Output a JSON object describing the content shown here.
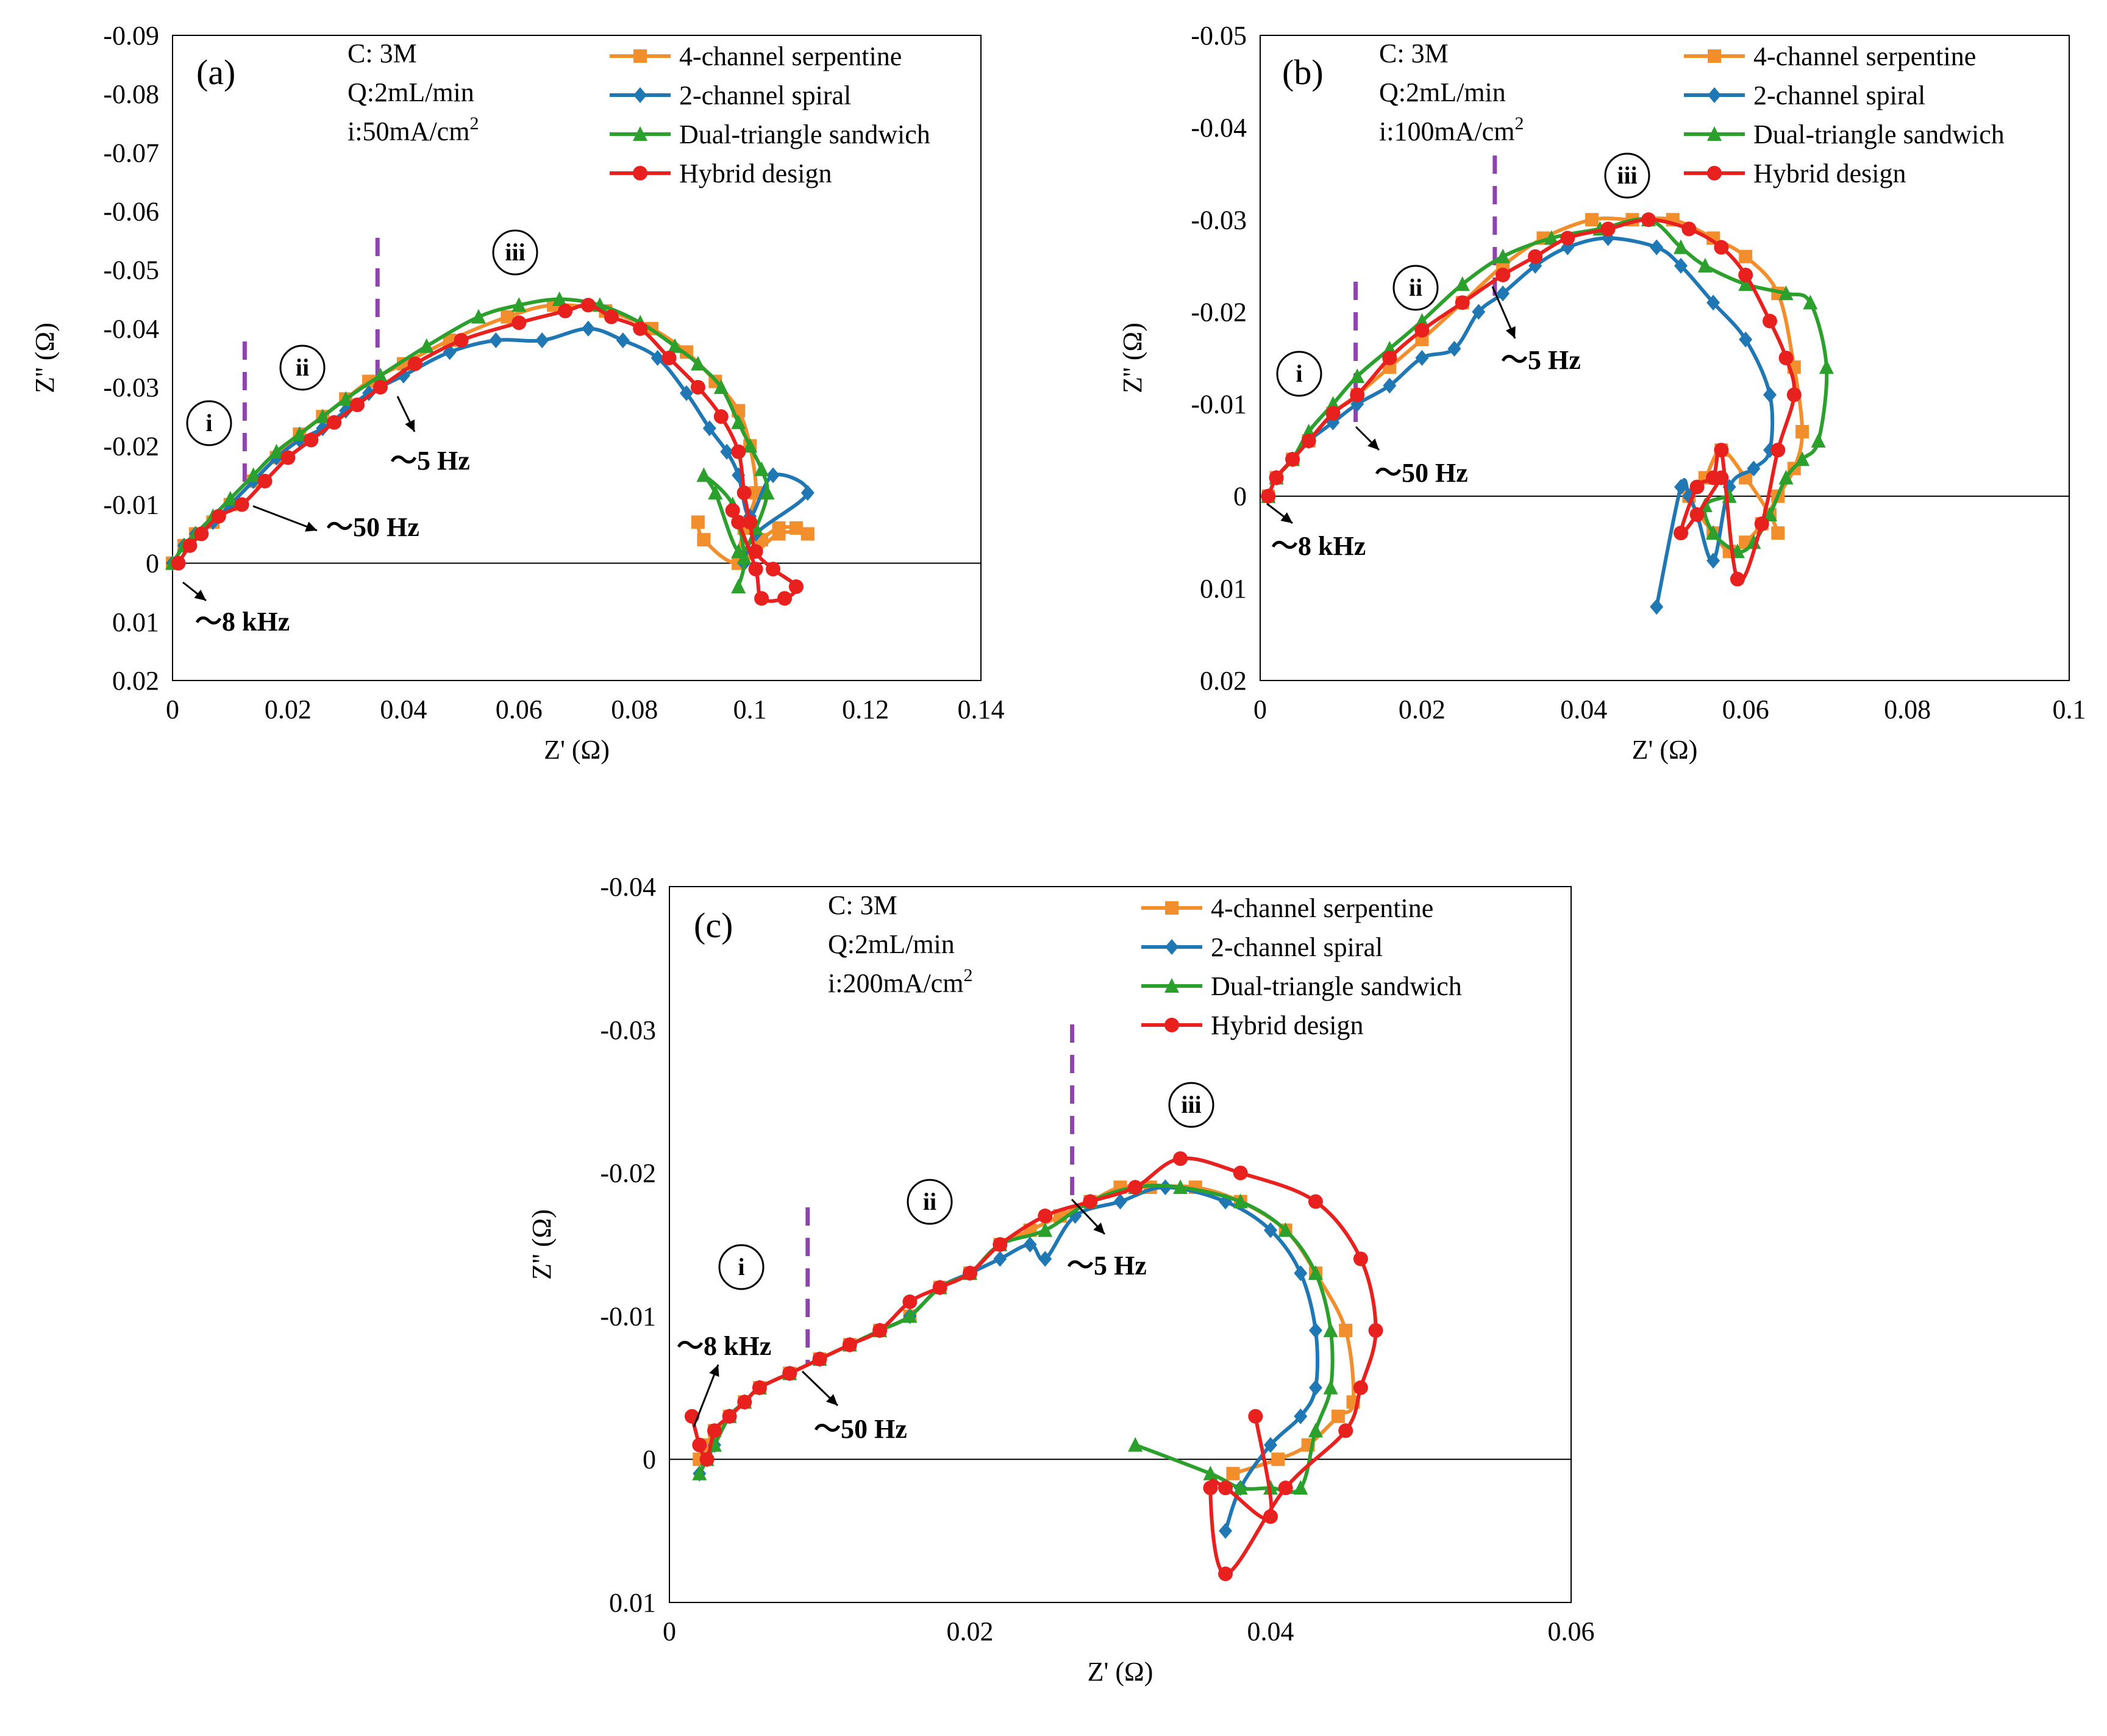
{
  "colors": {
    "4-channel serpentine": "#f28e2b",
    "2-channel spiral": "#1f77b4",
    "Dual-triangle sandwich": "#2ca02c",
    "Hybrid design": "#e8201e",
    "region_line": "#8e44ad"
  },
  "chart_data": [
    {
      "type": "scatter",
      "panel_label": "(a)",
      "conditions": [
        "C: 3M",
        "Q:2mL/min",
        "i:50mA/cm"
      ],
      "x_ticks": [
        "0",
        "0.02",
        "0.04",
        "0.06",
        "0.08",
        "0.1",
        "0.12",
        "0.14"
      ],
      "y_ticks": [
        "-0.09",
        "-0.08",
        "-0.07",
        "-0.06",
        "-0.05",
        "-0.04",
        "-0.03",
        "-0.02",
        "-0.01",
        "0",
        "0.01",
        "0.02"
      ],
      "xlabel": "Z' (Ω)",
      "ylabel": "Z'' (Ω)",
      "xlim": [
        0,
        0.14
      ],
      "ylim": [
        -0.09,
        0.02
      ],
      "y_inverted": true,
      "region_boundaries_x": [
        0.0125,
        0.0355
      ],
      "region_labels": [
        "i",
        "ii",
        "iii"
      ],
      "frequency_labels": [
        "～8 kHz",
        "～50 Hz",
        "～5 Hz"
      ],
      "series": [
        {
          "name": "4-channel serpentine",
          "marker": "square",
          "x": [
            0,
            0.002,
            0.004,
            0.007,
            0.01,
            0.014,
            0.018,
            0.022,
            0.026,
            0.03,
            0.034,
            0.04,
            0.048,
            0.058,
            0.066,
            0.075,
            0.083,
            0.089,
            0.094,
            0.098,
            0.1,
            0.101,
            0.099,
            0.098,
            0.102,
            0.105,
            0.108,
            0.11,
            0.105,
            0.098,
            0.092,
            0.091
          ],
          "y": [
            0,
            -0.003,
            -0.005,
            -0.007,
            -0.01,
            -0.014,
            -0.018,
            -0.022,
            -0.025,
            -0.028,
            -0.031,
            -0.034,
            -0.038,
            -0.042,
            -0.044,
            -0.043,
            -0.04,
            -0.036,
            -0.031,
            -0.026,
            -0.02,
            -0.012,
            -0.006,
            0,
            -0.004,
            -0.006,
            -0.006,
            -0.005,
            -0.005,
            0,
            -0.004,
            -0.007
          ]
        },
        {
          "name": "2-channel spiral",
          "marker": "diamond",
          "x": [
            0,
            0.002,
            0.004,
            0.007,
            0.01,
            0.014,
            0.018,
            0.022,
            0.026,
            0.03,
            0.034,
            0.04,
            0.048,
            0.056,
            0.064,
            0.072,
            0.078,
            0.084,
            0.089,
            0.093,
            0.096,
            0.098,
            0.1,
            0.104,
            0.11,
            0.101,
            0.099
          ],
          "y": [
            0,
            -0.003,
            -0.005,
            -0.007,
            -0.01,
            -0.014,
            -0.018,
            -0.021,
            -0.023,
            -0.026,
            -0.029,
            -0.032,
            -0.036,
            -0.038,
            -0.038,
            -0.04,
            -0.038,
            -0.035,
            -0.029,
            -0.023,
            -0.019,
            -0.015,
            -0.008,
            -0.015,
            -0.012,
            -0.005,
            0
          ]
        },
        {
          "name": "Dual-triangle sandwich",
          "marker": "triangle",
          "x": [
            0,
            0.002,
            0.004,
            0.007,
            0.01,
            0.014,
            0.018,
            0.022,
            0.026,
            0.03,
            0.036,
            0.044,
            0.053,
            0.06,
            0.067,
            0.074,
            0.081,
            0.087,
            0.091,
            0.095,
            0.098,
            0.1,
            0.102,
            0.103,
            0.101,
            0.098,
            0.094,
            0.092,
            0.097,
            0.099,
            0.098
          ],
          "y": [
            0,
            -0.003,
            -0.005,
            -0.008,
            -0.011,
            -0.015,
            -0.019,
            -0.022,
            -0.025,
            -0.028,
            -0.032,
            -0.037,
            -0.042,
            -0.044,
            -0.045,
            -0.044,
            -0.041,
            -0.037,
            -0.034,
            -0.03,
            -0.024,
            -0.02,
            -0.016,
            -0.012,
            -0.006,
            -0.002,
            -0.012,
            -0.015,
            -0.01,
            -0.001,
            0.004
          ]
        },
        {
          "name": "Hybrid design",
          "marker": "circle",
          "x": [
            0.001,
            0.003,
            0.005,
            0.008,
            0.012,
            0.016,
            0.02,
            0.024,
            0.028,
            0.032,
            0.036,
            0.042,
            0.05,
            0.06,
            0.068,
            0.072,
            0.076,
            0.081,
            0.086,
            0.091,
            0.095,
            0.098,
            0.099,
            0.1,
            0.101,
            0.104,
            0.108,
            0.106,
            0.102,
            0.101,
            0.098,
            0.097
          ],
          "y": [
            0,
            -0.003,
            -0.005,
            -0.008,
            -0.01,
            -0.014,
            -0.018,
            -0.021,
            -0.024,
            -0.027,
            -0.03,
            -0.034,
            -0.038,
            -0.041,
            -0.043,
            -0.044,
            -0.042,
            -0.04,
            -0.035,
            -0.03,
            -0.025,
            -0.019,
            -0.012,
            -0.007,
            -0.002,
            0.001,
            0.004,
            0.006,
            0.006,
            0.001,
            -0.007,
            -0.009
          ]
        }
      ]
    },
    {
      "type": "scatter",
      "panel_label": "(b)",
      "conditions": [
        "C: 3M",
        "Q:2mL/min",
        "i:100mA/cm"
      ],
      "x_ticks": [
        "0",
        "0.02",
        "0.04",
        "0.06",
        "0.08",
        "0.1"
      ],
      "y_ticks": [
        "-0.05",
        "-0.04",
        "-0.03",
        "-0.02",
        "-0.01",
        "0",
        "0.01",
        "0.02"
      ],
      "xlabel": "Z' (Ω)",
      "ylabel": "Z'' (Ω)",
      "xlim": [
        0,
        0.1
      ],
      "ylim": [
        -0.05,
        0.02
      ],
      "y_inverted": true,
      "region_boundaries_x": [
        0.0118,
        0.029
      ],
      "region_labels": [
        "i",
        "ii",
        "iii"
      ],
      "frequency_labels": [
        "～8 kHz",
        "～50 Hz",
        "～5 Hz"
      ],
      "series": [
        {
          "name": "4-channel serpentine",
          "marker": "square",
          "x": [
            0.001,
            0.002,
            0.004,
            0.006,
            0.009,
            0.012,
            0.016,
            0.02,
            0.025,
            0.03,
            0.035,
            0.041,
            0.046,
            0.051,
            0.056,
            0.06,
            0.064,
            0.066,
            0.067,
            0.066,
            0.064,
            0.062,
            0.06,
            0.058,
            0.056,
            0.053,
            0.055,
            0.057,
            0.06,
            0.063,
            0.064
          ],
          "y": [
            0,
            -0.002,
            -0.004,
            -0.006,
            -0.009,
            -0.011,
            -0.014,
            -0.017,
            -0.021,
            -0.025,
            -0.028,
            -0.03,
            -0.03,
            -0.03,
            -0.028,
            -0.026,
            -0.022,
            -0.014,
            -0.007,
            -0.003,
            0,
            0.003,
            0.005,
            0.006,
            0.004,
            0,
            -0.002,
            -0.005,
            -0.002,
            0.002,
            0.004
          ]
        },
        {
          "name": "2-channel spiral",
          "marker": "diamond",
          "x": [
            0.001,
            0.002,
            0.004,
            0.006,
            0.009,
            0.012,
            0.016,
            0.02,
            0.024,
            0.027,
            0.03,
            0.034,
            0.038,
            0.043,
            0.049,
            0.052,
            0.056,
            0.06,
            0.063,
            0.063,
            0.061,
            0.058,
            0.056,
            0.054,
            0.053,
            0.052,
            0.049
          ],
          "y": [
            0,
            -0.002,
            -0.004,
            -0.006,
            -0.008,
            -0.01,
            -0.012,
            -0.015,
            -0.016,
            -0.02,
            -0.022,
            -0.025,
            -0.027,
            -0.028,
            -0.027,
            -0.025,
            -0.021,
            -0.017,
            -0.011,
            -0.005,
            -0.003,
            -0.001,
            0.007,
            0.002,
            0,
            -0.001,
            0.012
          ]
        },
        {
          "name": "Dual-triangle sandwich",
          "marker": "triangle",
          "x": [
            0.001,
            0.002,
            0.004,
            0.006,
            0.009,
            0.012,
            0.016,
            0.02,
            0.025,
            0.03,
            0.036,
            0.042,
            0.048,
            0.052,
            0.055,
            0.06,
            0.065,
            0.068,
            0.07,
            0.069,
            0.067,
            0.065,
            0.063,
            0.061,
            0.059,
            0.056,
            0.055,
            0.058
          ],
          "y": [
            0,
            -0.002,
            -0.004,
            -0.007,
            -0.01,
            -0.013,
            -0.016,
            -0.019,
            -0.023,
            -0.026,
            -0.028,
            -0.029,
            -0.03,
            -0.027,
            -0.025,
            -0.023,
            -0.022,
            -0.021,
            -0.014,
            -0.006,
            -0.004,
            -0.002,
            0.002,
            0.005,
            0.006,
            0.004,
            0.001,
            0
          ]
        },
        {
          "name": "Hybrid design",
          "marker": "circle",
          "x": [
            0.001,
            0.002,
            0.004,
            0.006,
            0.009,
            0.012,
            0.016,
            0.02,
            0.025,
            0.03,
            0.034,
            0.038,
            0.043,
            0.048,
            0.053,
            0.057,
            0.06,
            0.063,
            0.065,
            0.066,
            0.064,
            0.062,
            0.059,
            0.057,
            0.056,
            0.054,
            0.052,
            0.054,
            0.057
          ],
          "y": [
            0,
            -0.002,
            -0.004,
            -0.006,
            -0.009,
            -0.011,
            -0.015,
            -0.018,
            -0.021,
            -0.024,
            -0.026,
            -0.028,
            -0.029,
            -0.03,
            -0.029,
            -0.027,
            -0.024,
            -0.019,
            -0.015,
            -0.011,
            -0.005,
            0.003,
            0.009,
            -0.005,
            -0.002,
            -0.001,
            0.004,
            0.002,
            -0.002
          ]
        }
      ]
    },
    {
      "type": "scatter",
      "panel_label": "(c)",
      "conditions": [
        "C: 3M",
        "Q:2mL/min",
        "i:200mA/cm"
      ],
      "x_ticks": [
        "0",
        "0.02",
        "0.04",
        "0.06"
      ],
      "y_ticks": [
        "-0.04",
        "-0.03",
        "-0.02",
        "-0.01",
        "0",
        "0.01"
      ],
      "xlabel": "Z' (Ω)",
      "ylabel": "Z'' (Ω)",
      "xlim": [
        0,
        0.06
      ],
      "ylim": [
        -0.04,
        0.01
      ],
      "y_inverted": true,
      "region_boundaries_x": [
        0.0092,
        0.0268
      ],
      "region_labels": [
        "i",
        "ii",
        "iii"
      ],
      "frequency_labels": [
        "～8 kHz",
        "～50 Hz",
        "～5 Hz"
      ],
      "series": [
        {
          "name": "4-channel serpentine",
          "marker": "square",
          "x": [
            0.002,
            0.0025,
            0.003,
            0.004,
            0.005,
            0.006,
            0.008,
            0.01,
            0.012,
            0.014,
            0.016,
            0.018,
            0.02,
            0.022,
            0.024,
            0.026,
            0.028,
            0.03,
            0.032,
            0.035,
            0.038,
            0.041,
            0.043,
            0.045,
            0.0455,
            0.0445,
            0.0425,
            0.0405,
            0.0375
          ],
          "y": [
            0,
            -0.001,
            -0.002,
            -0.003,
            -0.004,
            -0.005,
            -0.006,
            -0.007,
            -0.008,
            -0.009,
            -0.01,
            -0.012,
            -0.013,
            -0.015,
            -0.016,
            -0.017,
            -0.018,
            -0.019,
            -0.019,
            -0.019,
            -0.018,
            -0.016,
            -0.013,
            -0.009,
            -0.004,
            -0.003,
            -0.001,
            0,
            0.001
          ]
        },
        {
          "name": "2-channel spiral",
          "marker": "diamond",
          "x": [
            0.002,
            0.0025,
            0.003,
            0.004,
            0.005,
            0.006,
            0.008,
            0.01,
            0.012,
            0.014,
            0.016,
            0.018,
            0.02,
            0.022,
            0.024,
            0.025,
            0.027,
            0.03,
            0.033,
            0.037,
            0.04,
            0.042,
            0.043,
            0.043,
            0.042,
            0.04,
            0.038,
            0.037
          ],
          "y": [
            0.001,
            0,
            -0.001,
            -0.003,
            -0.004,
            -0.005,
            -0.006,
            -0.007,
            -0.008,
            -0.009,
            -0.01,
            -0.012,
            -0.013,
            -0.014,
            -0.015,
            -0.014,
            -0.017,
            -0.018,
            -0.019,
            -0.018,
            -0.016,
            -0.013,
            -0.009,
            -0.005,
            -0.003,
            -0.001,
            0.002,
            0.005
          ]
        },
        {
          "name": "Dual-triangle sandwich",
          "marker": "triangle",
          "x": [
            0.002,
            0.0025,
            0.003,
            0.004,
            0.005,
            0.006,
            0.008,
            0.01,
            0.012,
            0.014,
            0.016,
            0.018,
            0.02,
            0.022,
            0.025,
            0.028,
            0.031,
            0.034,
            0.038,
            0.041,
            0.043,
            0.044,
            0.044,
            0.043,
            0.042,
            0.04,
            0.038,
            0.036,
            0.031
          ],
          "y": [
            0.001,
            0,
            -0.001,
            -0.003,
            -0.004,
            -0.005,
            -0.006,
            -0.007,
            -0.008,
            -0.009,
            -0.01,
            -0.012,
            -0.013,
            -0.015,
            -0.016,
            -0.018,
            -0.019,
            -0.019,
            -0.018,
            -0.016,
            -0.013,
            -0.009,
            -0.005,
            -0.002,
            0.002,
            0.002,
            0.002,
            0.001,
            -0.001
          ]
        },
        {
          "name": "Hybrid design",
          "marker": "circle",
          "x": [
            0.0015,
            0.002,
            0.0025,
            0.003,
            0.004,
            0.005,
            0.006,
            0.008,
            0.01,
            0.012,
            0.014,
            0.016,
            0.018,
            0.02,
            0.022,
            0.025,
            0.028,
            0.031,
            0.034,
            0.038,
            0.043,
            0.046,
            0.047,
            0.046,
            0.045,
            0.041,
            0.037,
            0.036,
            0.037,
            0.04,
            0.039
          ],
          "y": [
            -0.003,
            -0.001,
            0,
            -0.002,
            -0.003,
            -0.004,
            -0.005,
            -0.006,
            -0.007,
            -0.008,
            -0.009,
            -0.011,
            -0.012,
            -0.013,
            -0.015,
            -0.017,
            -0.018,
            -0.019,
            -0.021,
            -0.02,
            -0.018,
            -0.014,
            -0.009,
            -0.005,
            -0.002,
            0.002,
            0.008,
            0.002,
            0.002,
            0.004,
            -0.003
          ]
        }
      ]
    }
  ]
}
